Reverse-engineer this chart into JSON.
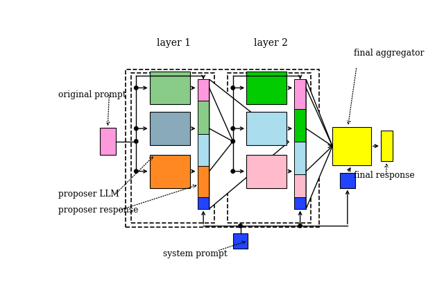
{
  "layer1_label": "layer 1",
  "layer2_label": "layer 2",
  "original_prompt_label": "original prompt",
  "proposer_llm_label": "proposer LLM",
  "proposer_response_label": "proposer response",
  "system_prompt_label": "system prompt",
  "final_aggregator_label": "final aggregator",
  "final_response_label": "final response",
  "colors": {
    "pink": "#FF99DD",
    "green": "#88CC88",
    "blue_gray": "#88AABB",
    "orange": "#FF8822",
    "bright_green": "#00CC00",
    "light_blue": "#AADDEE",
    "light_pink": "#FFBBCC",
    "yellow": "#FFFF00",
    "blue": "#2244FF",
    "agg1_pink": "#FF99DD",
    "agg1_green": "#88CC88",
    "agg1_blue": "#AADDEE",
    "agg1_orange": "#FF8822",
    "agg2_pink": "#FF99DD",
    "agg2_green": "#00CC00",
    "agg2_blue": "#AADDEE",
    "agg2_lpink": "#FFBBCC"
  }
}
